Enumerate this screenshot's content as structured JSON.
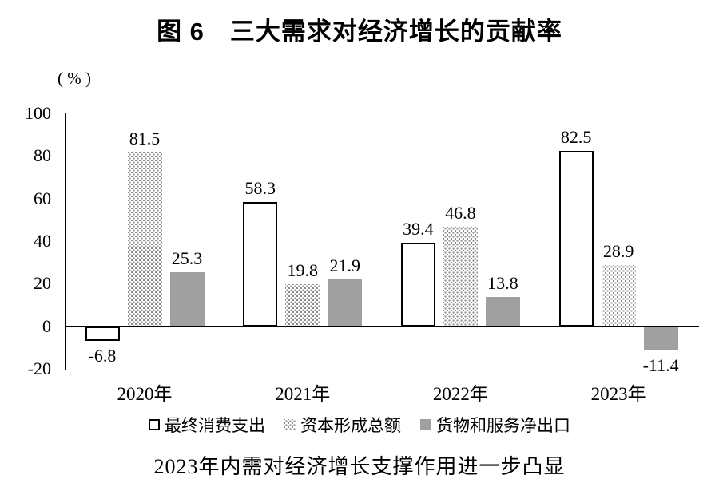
{
  "figure": {
    "title": "图 6　三大需求对经济增长的贡献率",
    "unit_label": "( % )",
    "caption": "2023年内需对经济增长支撑作用进一步凸显"
  },
  "colors": {
    "axis": "#000000",
    "text": "#000000",
    "bar_outline_border": "#000000",
    "bar_outline_fill": "#ffffff",
    "bar_dot": "#8a8a8a",
    "bar_gray": "#a0a0a0",
    "background": "#ffffff"
  },
  "chart_data": {
    "type": "bar",
    "title": "图 6　三大需求对经济增长的贡献率",
    "subtitle": "2023年内需对经济增长支撑作用进一步凸显",
    "categories": [
      "2020年",
      "2021年",
      "2022年",
      "2023年"
    ],
    "series": [
      {
        "name": "最终消费支出",
        "style": "outline",
        "values": [
          -6.8,
          58.3,
          39.4,
          82.5
        ]
      },
      {
        "name": "资本形成总额",
        "style": "dotted",
        "values": [
          81.5,
          19.8,
          46.8,
          28.9
        ]
      },
      {
        "name": "货物和服务净出口",
        "style": "gray",
        "values": [
          25.3,
          21.9,
          13.8,
          -11.4
        ]
      }
    ],
    "xlabel": "",
    "ylabel": "( % )",
    "ylim": [
      -20,
      100
    ],
    "yticks": [
      100,
      80,
      60,
      40,
      20,
      0,
      -20
    ],
    "grid": false,
    "legend_position": "bottom",
    "value_labels_shown": true
  }
}
